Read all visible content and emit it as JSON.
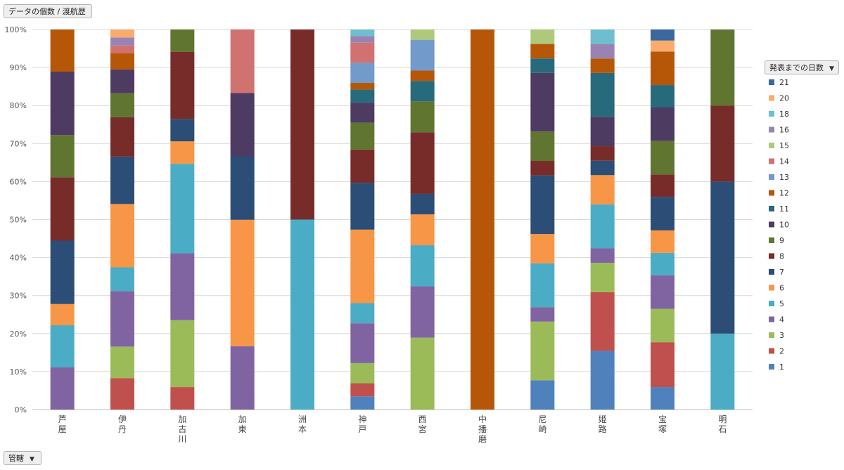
{
  "field_button": {
    "label": "データの個数 / 渡航歴"
  },
  "legend_button": {
    "label": "発表までの日数"
  },
  "axis_button": {
    "label": "管轄"
  },
  "chart_data": {
    "type": "bar",
    "stacked": "percent",
    "title": "",
    "xlabel": "",
    "ylabel": "",
    "ylim": [
      0,
      100
    ],
    "yticks": [
      "0%",
      "10%",
      "20%",
      "30%",
      "40%",
      "50%",
      "60%",
      "70%",
      "80%",
      "90%",
      "100%"
    ],
    "grid": true,
    "legend_position": "right",
    "categories": [
      "芦屋",
      "伊丹",
      "加古川",
      "加東",
      "洲本",
      "神戸",
      "西宮",
      "中播磨",
      "尼崎",
      "姫路",
      "宝塚",
      "明石"
    ],
    "series": [
      {
        "name": "1",
        "color": "#4F81BD",
        "values": [
          0,
          0,
          0,
          0,
          0,
          3.4,
          0,
          0,
          7.7,
          15.4,
          5.9,
          0
        ]
      },
      {
        "name": "2",
        "color": "#C0504D",
        "values": [
          0,
          8.3,
          5.9,
          0,
          0,
          3.4,
          0,
          0,
          0,
          15.4,
          11.8,
          0
        ]
      },
      {
        "name": "3",
        "color": "#9BBB59",
        "values": [
          0,
          8.3,
          17.6,
          0,
          0,
          5.2,
          18.9,
          0,
          15.4,
          7.7,
          8.8,
          0
        ]
      },
      {
        "name": "4",
        "color": "#8064A2",
        "values": [
          11.1,
          14.6,
          17.6,
          16.7,
          0,
          10.3,
          13.5,
          0,
          3.8,
          3.8,
          8.8,
          0
        ]
      },
      {
        "name": "5",
        "color": "#4BACC6",
        "values": [
          11.1,
          6.3,
          23.5,
          0,
          50,
          5.2,
          10.8,
          0,
          11.5,
          11.5,
          5.9,
          20
        ]
      },
      {
        "name": "6",
        "color": "#F79646",
        "values": [
          5.6,
          16.7,
          5.9,
          33.3,
          0,
          19.0,
          8.1,
          0,
          7.7,
          7.7,
          5.9,
          0
        ]
      },
      {
        "name": "7",
        "color": "#2C4D75",
        "values": [
          16.7,
          12.5,
          5.9,
          16.7,
          0,
          12.1,
          5.4,
          0,
          15.4,
          3.8,
          8.8,
          40
        ]
      },
      {
        "name": "8",
        "color": "#772C2A",
        "values": [
          16.7,
          10.4,
          17.6,
          0,
          50,
          8.6,
          16.2,
          0,
          3.8,
          3.8,
          5.9,
          20
        ]
      },
      {
        "name": "9",
        "color": "#5F7530",
        "values": [
          11.1,
          6.3,
          5.9,
          0,
          0,
          6.9,
          8.1,
          0,
          7.7,
          0,
          8.8,
          20
        ]
      },
      {
        "name": "10",
        "color": "#4D3B62",
        "values": [
          16.7,
          6.3,
          0,
          16.7,
          0,
          5.2,
          0,
          0,
          15.4,
          7.7,
          8.8,
          0
        ]
      },
      {
        "name": "11",
        "color": "#276A7C",
        "values": [
          0,
          0,
          0,
          0,
          0,
          3.4,
          5.4,
          0,
          3.8,
          11.5,
          5.9,
          0
        ]
      },
      {
        "name": "12",
        "color": "#B65708",
        "values": [
          11.1,
          4.2,
          0,
          0,
          0,
          1.7,
          2.7,
          100,
          3.8,
          3.8,
          8.8,
          0
        ]
      },
      {
        "name": "13",
        "color": "#729ACA",
        "values": [
          0,
          0,
          0,
          0,
          0,
          5.2,
          8.1,
          0,
          0,
          0,
          0,
          0
        ]
      },
      {
        "name": "14",
        "color": "#D0726F",
        "values": [
          0,
          2.1,
          0,
          16.7,
          0,
          5.2,
          0,
          0,
          0,
          0,
          0,
          0
        ]
      },
      {
        "name": "15",
        "color": "#AFC97A",
        "values": [
          0,
          0,
          0,
          0,
          0,
          0,
          2.7,
          0,
          3.8,
          0,
          0,
          0
        ]
      },
      {
        "name": "16",
        "color": "#9983B5",
        "values": [
          0,
          2.1,
          0,
          0,
          0,
          1.7,
          0,
          0,
          0,
          3.8,
          0,
          0
        ]
      },
      {
        "name": "18",
        "color": "#6FBDD1",
        "values": [
          0,
          0,
          0,
          0,
          0,
          1.7,
          0,
          0,
          0,
          3.8,
          0,
          0
        ]
      },
      {
        "name": "20",
        "color": "#F9AB6B",
        "values": [
          0,
          2.1,
          0,
          0,
          0,
          0,
          0,
          0,
          0,
          0,
          2.9,
          0
        ]
      },
      {
        "name": "21",
        "color": "#3A679C",
        "values": [
          0,
          0,
          0,
          0,
          0,
          0,
          0,
          0,
          0,
          0,
          2.9,
          0
        ]
      }
    ]
  }
}
